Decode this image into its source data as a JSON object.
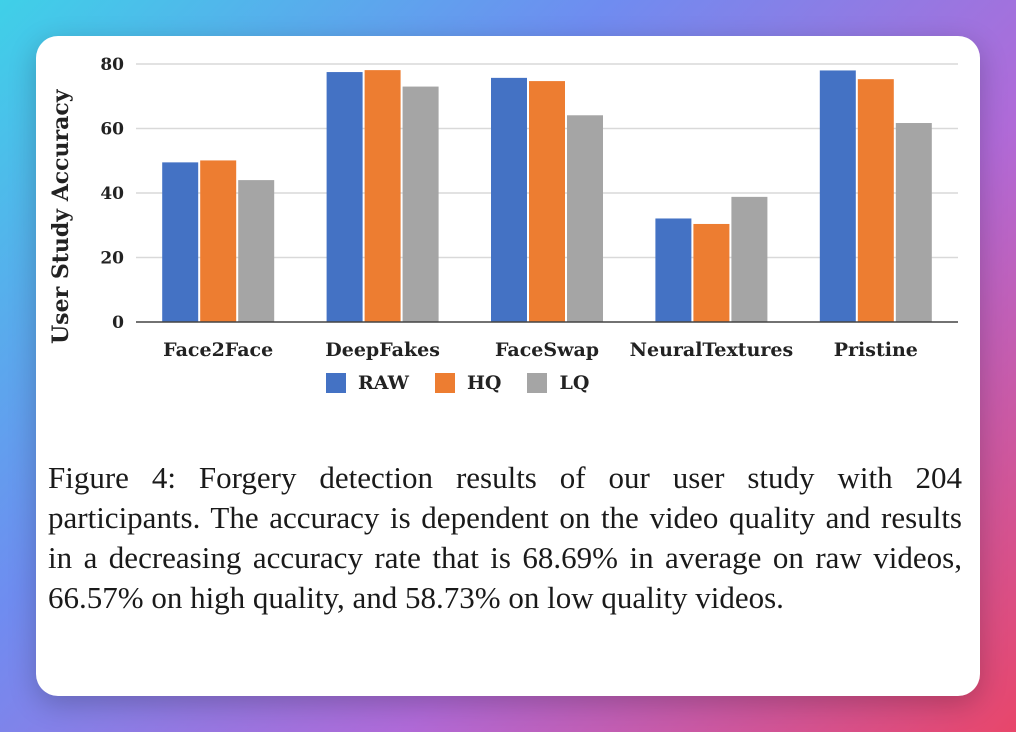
{
  "chart_data": {
    "type": "bar",
    "ylabel": "User Study Accuracy",
    "ylim": [
      0,
      80
    ],
    "yticks": [
      0,
      20,
      40,
      60,
      80
    ],
    "grid": true,
    "legend_position": "bottom",
    "categories": [
      "Face2Face",
      "DeepFakes",
      "FaceSwap",
      "NeuralTextures",
      "Pristine"
    ],
    "series": [
      {
        "name": "RAW",
        "color": "#4472c4",
        "values": [
          49.5,
          77.5,
          75.7,
          32.1,
          78.0
        ]
      },
      {
        "name": "HQ",
        "color": "#ed7d31",
        "values": [
          50.1,
          78.1,
          74.7,
          30.4,
          75.3
        ]
      },
      {
        "name": "LQ",
        "color": "#a5a5a5",
        "values": [
          44.0,
          73.0,
          64.1,
          38.8,
          61.7
        ]
      }
    ]
  },
  "caption": "Figure 4: Forgery detection results of our user study with 204 participants. The accuracy is dependent on the video quality and results in a decreasing accuracy rate that is 68.69% in average on raw videos, 66.57% on high quality, and 58.73% on low quality videos."
}
